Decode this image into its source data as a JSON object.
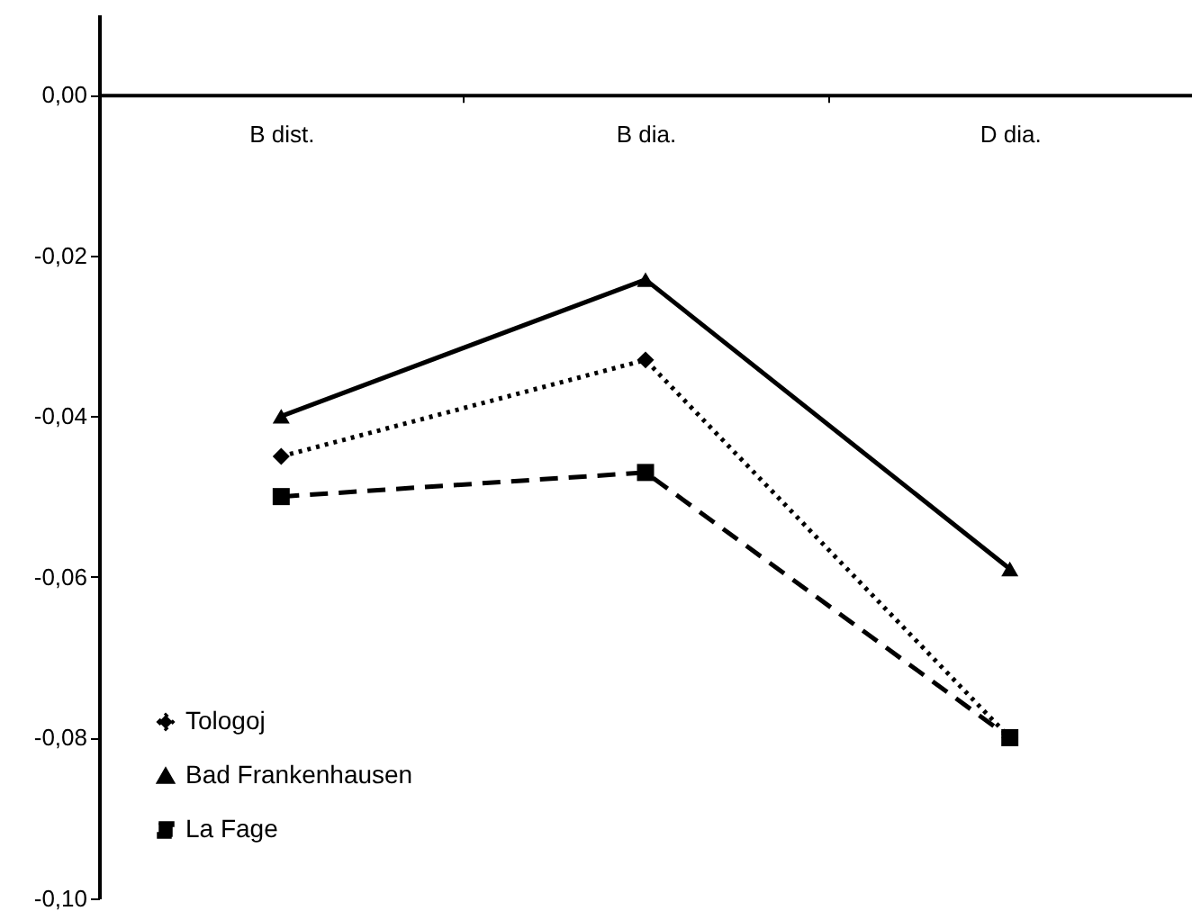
{
  "chart_data": {
    "type": "line",
    "categories": [
      "B dist.",
      "B dia.",
      "D dia."
    ],
    "series": [
      {
        "name": "Tologoj",
        "color": "#000000",
        "marker": "diamond",
        "line_style": "dotted",
        "values": [
          -0.045,
          -0.033,
          -0.08
        ]
      },
      {
        "name": "Bad Frankenhausen",
        "color": "#000000",
        "marker": "triangle",
        "line_style": "solid",
        "values": [
          -0.04,
          -0.023,
          -0.059
        ]
      },
      {
        "name": "La Fage",
        "color": "#000000",
        "marker": "square",
        "line_style": "dashed",
        "values": [
          -0.05,
          -0.047,
          -0.08
        ]
      }
    ],
    "ylim": [
      -0.1,
      0.01
    ],
    "yticks": [
      {
        "value": -0.1,
        "label": "-0,10"
      },
      {
        "value": -0.08,
        "label": "-0,08"
      },
      {
        "value": -0.06,
        "label": "-0,06"
      },
      {
        "value": -0.04,
        "label": "-0,04"
      },
      {
        "value": -0.02,
        "label": "-0,02"
      },
      {
        "value": 0,
        "label": "0,00"
      }
    ],
    "grid": false,
    "legend": "bottom left"
  }
}
